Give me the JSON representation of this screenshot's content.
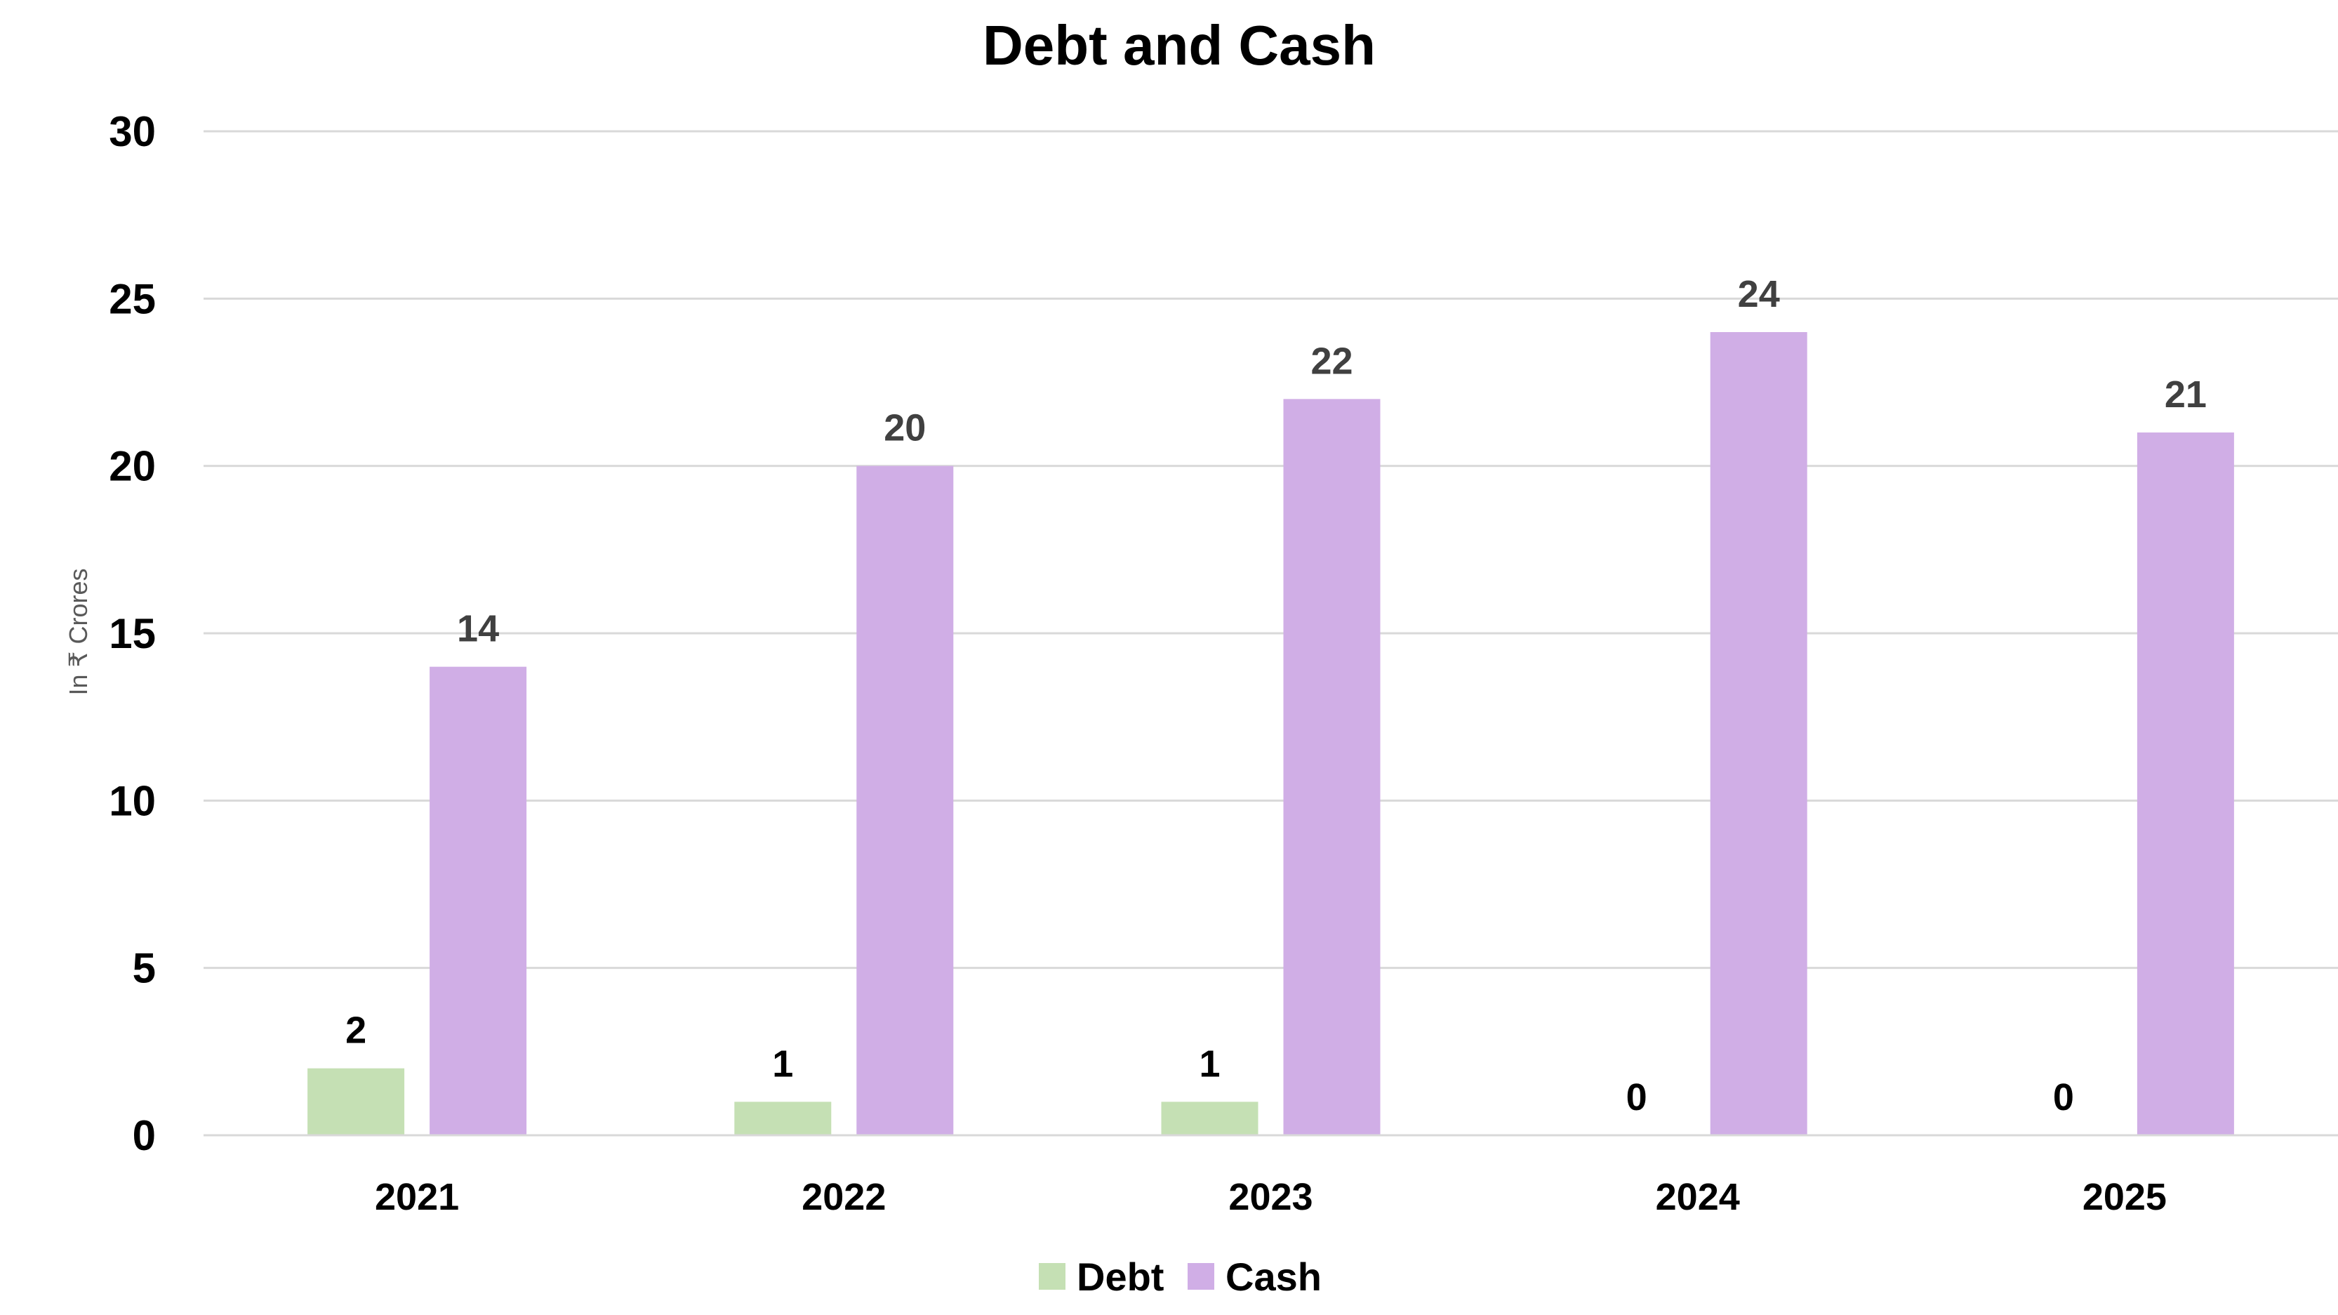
{
  "chart_data": {
    "type": "bar",
    "title": "Debt and Cash",
    "xlabel": "",
    "ylabel": "In ₹ Crores",
    "categories": [
      "2021",
      "2022",
      "2023",
      "2024",
      "2025"
    ],
    "series": [
      {
        "name": "Debt",
        "values": [
          2,
          1,
          1,
          0,
          0
        ],
        "color": "#c5e0b4",
        "label_color": "#000000"
      },
      {
        "name": "Cash",
        "values": [
          14,
          20,
          22,
          24,
          21
        ],
        "color": "#d0aee6",
        "label_color": "#404040"
      }
    ],
    "ylim": [
      0,
      30
    ],
    "yticks": [
      0,
      5,
      10,
      15,
      20,
      25,
      30
    ],
    "grid": true,
    "legend_position": "bottom"
  }
}
